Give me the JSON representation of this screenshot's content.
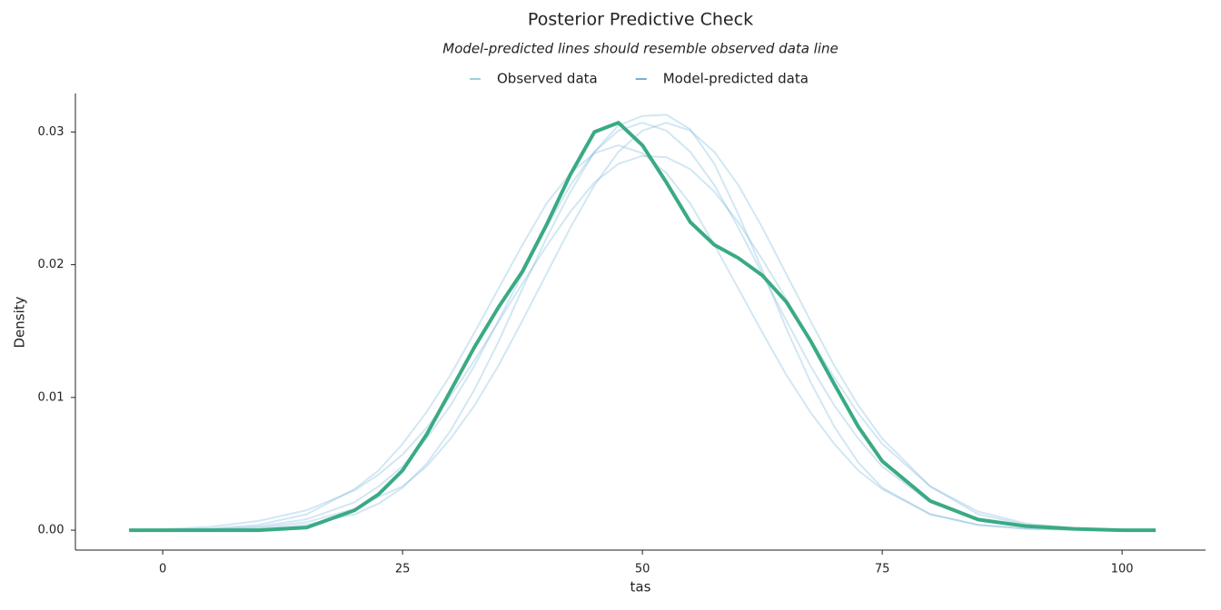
{
  "chart_data": {
    "type": "line",
    "title": "Posterior Predictive Check",
    "subtitle": "Model-predicted lines should resemble observed data line",
    "xlabel": "tas",
    "ylabel": "Density",
    "x": [
      -3.5,
      0,
      5,
      10,
      15,
      20,
      22.5,
      25,
      27.5,
      30,
      32.5,
      35,
      37.5,
      40,
      42.5,
      45,
      47.5,
      50,
      52.5,
      55,
      57.5,
      60,
      62.5,
      65,
      67.5,
      70,
      72.5,
      75,
      80,
      85,
      90,
      95,
      100,
      103.5
    ],
    "series": [
      {
        "name": "Observed data",
        "color": "#3aaa84",
        "legend_color": "#5ab4c8",
        "values": [
          0,
          0,
          0,
          0,
          0.0002,
          0.0015,
          0.0027,
          0.0045,
          0.0072,
          0.0105,
          0.0138,
          0.0168,
          0.0195,
          0.023,
          0.0268,
          0.03,
          0.0307,
          0.029,
          0.0262,
          0.0232,
          0.0215,
          0.0205,
          0.0192,
          0.0172,
          0.0143,
          0.011,
          0.0078,
          0.0052,
          0.0022,
          0.0008,
          0.0003,
          0.0001,
          0,
          0
        ]
      },
      {
        "name": "Model-predicted data",
        "color": "#6baed6",
        "legend_color": "#1f77b4",
        "draws": [
          [
            0,
            2e-05,
            8e-05,
            0.00027,
            0.00082,
            0.0021,
            0.0033,
            0.0048,
            0.0069,
            0.0094,
            0.0124,
            0.0158,
            0.0193,
            0.0228,
            0.026,
            0.0285,
            0.0301,
            0.0307,
            0.0301,
            0.0285,
            0.026,
            0.0228,
            0.0193,
            0.0158,
            0.0124,
            0.0094,
            0.0069,
            0.0048,
            0.0021,
            0.00082,
            0.00027,
            8e-05,
            2e-05,
            0
          ],
          [
            0,
            1e-05,
            5e-05,
            0.00018,
            0.0006,
            0.0016,
            0.0025,
            0.0033,
            0.0048,
            0.0069,
            0.0094,
            0.0124,
            0.0158,
            0.0193,
            0.0228,
            0.026,
            0.0285,
            0.0301,
            0.0307,
            0.0301,
            0.0285,
            0.026,
            0.0228,
            0.0193,
            0.0158,
            0.0124,
            0.0094,
            0.0069,
            0.0033,
            0.0012,
            0.0004,
            0.00012,
            4e-05,
            1e-05
          ],
          [
            1e-05,
            4e-05,
            0.00012,
            0.0004,
            0.0012,
            0.0031,
            0.0045,
            0.0065,
            0.0089,
            0.0117,
            0.0149,
            0.0182,
            0.0215,
            0.0246,
            0.0269,
            0.0284,
            0.029,
            0.0284,
            0.0269,
            0.0246,
            0.0215,
            0.0182,
            0.0149,
            0.0117,
            0.0089,
            0.0065,
            0.0045,
            0.0031,
            0.0012,
            0.0004,
            0.00012,
            4e-05,
            1e-05,
            0
          ],
          [
            0,
            0,
            2e-05,
            0.0001,
            0.0004,
            0.0012,
            0.002,
            0.0032,
            0.005,
            0.0075,
            0.0106,
            0.0142,
            0.0182,
            0.022,
            0.0255,
            0.0285,
            0.0305,
            0.0312,
            0.0313,
            0.0302,
            0.0276,
            0.0238,
            0.0196,
            0.0152,
            0.0112,
            0.0078,
            0.0051,
            0.0032,
            0.0012,
            0.0004,
            0.0001,
            3e-05,
            0,
            0
          ],
          [
            4e-05,
            8e-05,
            0.00025,
            0.0007,
            0.0015,
            0.003,
            0.0042,
            0.0057,
            0.0077,
            0.0101,
            0.0128,
            0.0157,
            0.0186,
            0.0214,
            0.024,
            0.0262,
            0.0276,
            0.0282,
            0.0281,
            0.0272,
            0.0255,
            0.0232,
            0.0204,
            0.0174,
            0.0144,
            0.0115,
            0.0088,
            0.0065,
            0.0033,
            0.0014,
            0.0005,
            0.00016,
            5e-05,
            2e-05
          ]
        ]
      }
    ],
    "xlim": [
      -9.1,
      108.7
    ],
    "ylim": [
      -0.0015,
      0.0329
    ],
    "xticks": [
      0,
      25,
      50,
      75,
      100
    ],
    "yticks": [
      {
        "value": 0,
        "label": "0.00"
      },
      {
        "value": 0.01,
        "label": "0.01"
      },
      {
        "value": 0.02,
        "label": "0.02"
      },
      {
        "value": 0.03,
        "label": "0.03"
      }
    ],
    "grid": false
  }
}
